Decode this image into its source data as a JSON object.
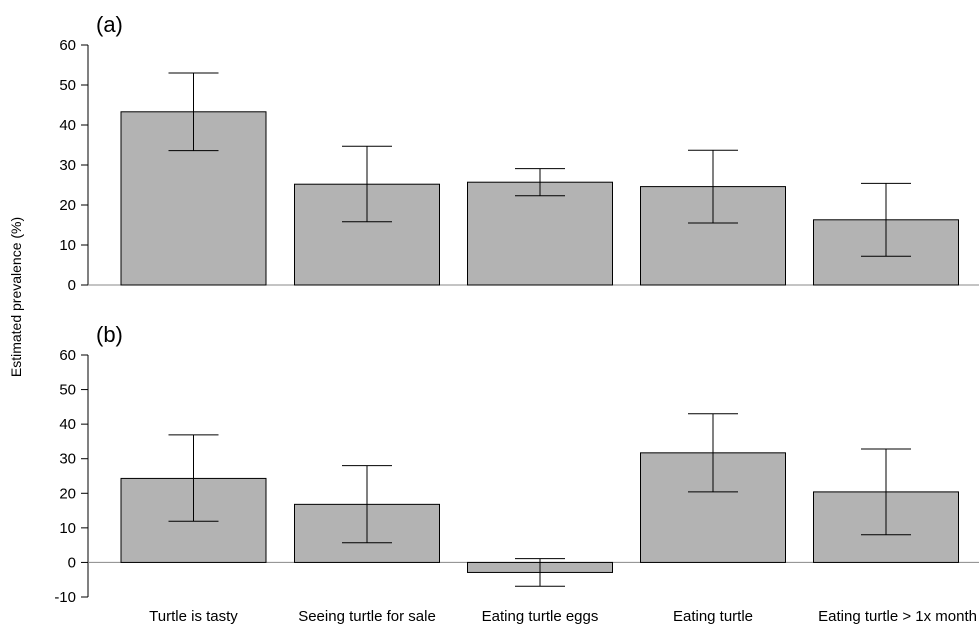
{
  "colors": {
    "bar_fill": "#b3b3b3",
    "bar_stroke": "#000000",
    "zero_line": "#888888"
  },
  "chart_data": {
    "type": "bar",
    "ylabel": "Estimated prevalence (%)",
    "categories": [
      "Turtle is tasty",
      "Seeing turtle for sale",
      "Eating turtle eggs",
      "Eating turtle",
      "Eating turtle > 1x month"
    ],
    "panels": [
      {
        "label": "(a)",
        "ylim": [
          0,
          60
        ],
        "yticks": [
          0,
          10,
          20,
          30,
          40,
          50,
          60
        ],
        "values": [
          43.3,
          25.2,
          25.7,
          24.6,
          16.3
        ],
        "error_low": [
          33.6,
          15.8,
          22.3,
          15.5,
          7.2
        ],
        "error_high": [
          53.0,
          34.7,
          29.1,
          33.7,
          25.4
        ]
      },
      {
        "label": "(b)",
        "ylim": [
          -10,
          60
        ],
        "yticks": [
          -10,
          0,
          10,
          20,
          30,
          40,
          50,
          60
        ],
        "values": [
          24.3,
          16.8,
          -2.9,
          31.7,
          20.4
        ],
        "error_low": [
          11.9,
          5.7,
          -6.9,
          20.4,
          8.0
        ],
        "error_high": [
          36.9,
          28.0,
          1.1,
          43.0,
          32.8
        ]
      }
    ]
  }
}
